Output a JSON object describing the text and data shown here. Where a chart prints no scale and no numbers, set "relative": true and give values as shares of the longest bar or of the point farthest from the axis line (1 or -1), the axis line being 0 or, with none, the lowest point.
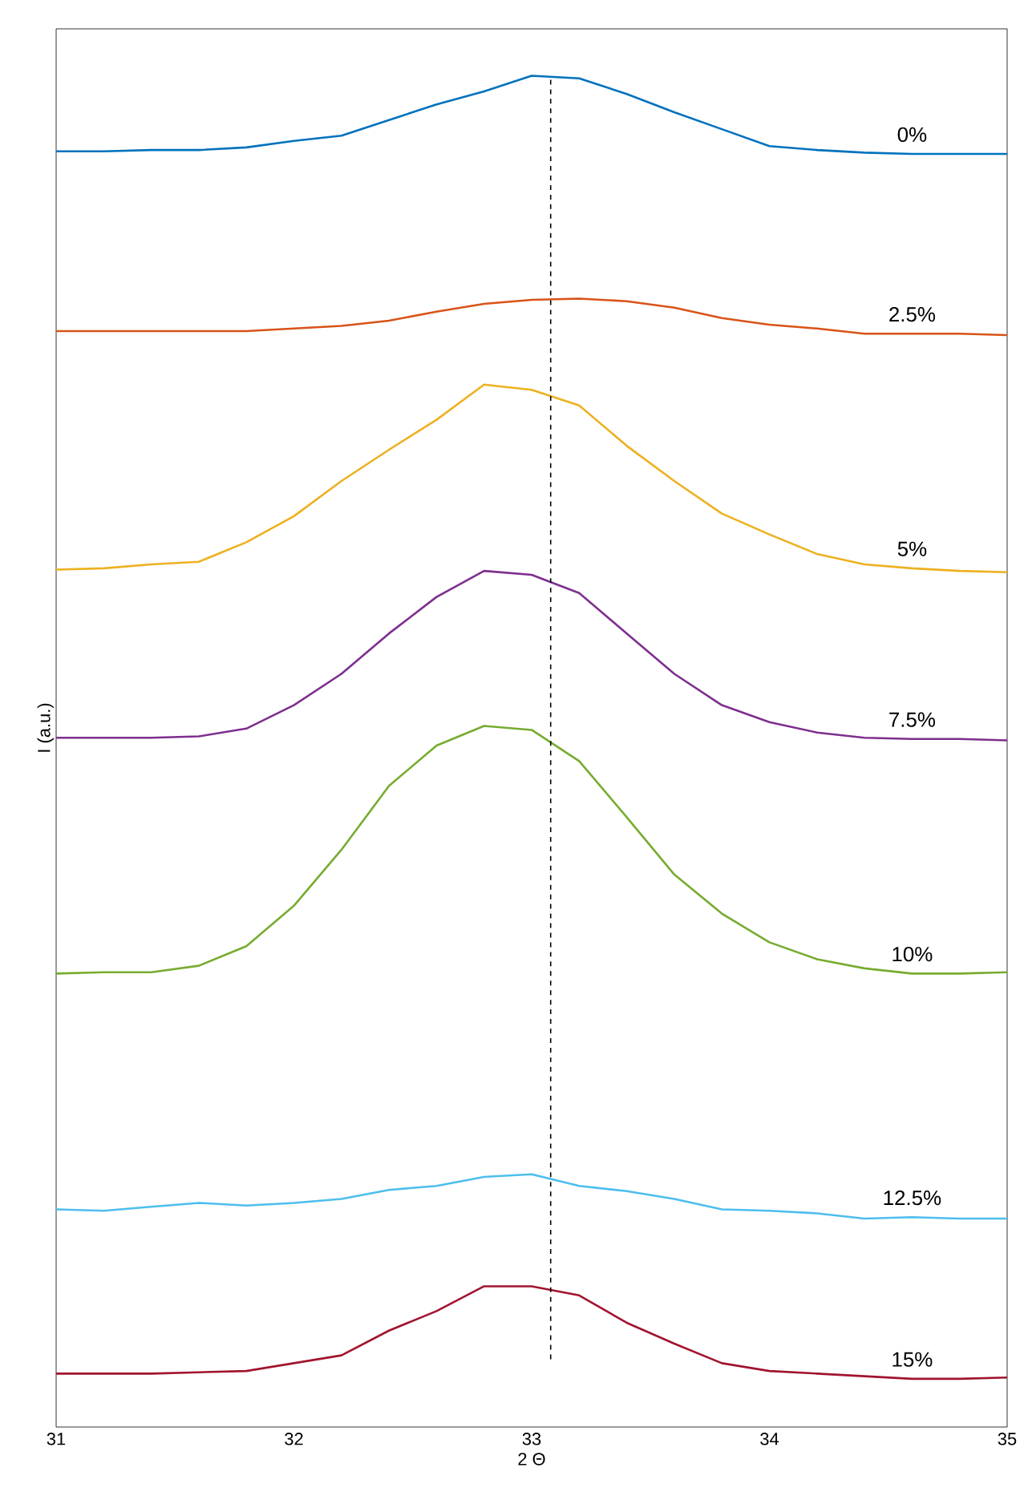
{
  "chart_data": {
    "type": "line",
    "relative": true,
    "xlabel": "2 Θ",
    "ylabel": "I (a.u.)",
    "xlim": [
      31,
      35
    ],
    "xticks": [
      31,
      32,
      33,
      34,
      35
    ],
    "x": [
      31,
      31.2,
      31.4,
      31.6,
      31.8,
      32,
      32.2,
      32.4,
      32.6,
      32.8,
      33,
      33.2,
      33.4,
      33.6,
      33.8,
      34,
      34.2,
      34.4,
      34.6,
      34.8,
      35
    ],
    "series": [
      {
        "name": "0%",
        "color": "#0072bd",
        "values": [
          0.942,
          0.942,
          0.943,
          0.943,
          0.945,
          0.95,
          0.954,
          0.966,
          0.978,
          0.988,
          1.0,
          0.998,
          0.986,
          0.972,
          0.959,
          0.946,
          0.943,
          0.941,
          0.94,
          0.94,
          0.94
        ]
      },
      {
        "name": "2.5%",
        "color": "#d95319",
        "values": [
          0.804,
          0.804,
          0.804,
          0.804,
          0.804,
          0.806,
          0.808,
          0.812,
          0.819,
          0.825,
          0.828,
          0.829,
          0.827,
          0.822,
          0.814,
          0.809,
          0.806,
          0.802,
          0.802,
          0.802,
          0.801
        ]
      },
      {
        "name": "5%",
        "color": "#edb120",
        "values": [
          0.621,
          0.622,
          0.625,
          0.627,
          0.642,
          0.662,
          0.689,
          0.713,
          0.736,
          0.763,
          0.759,
          0.747,
          0.716,
          0.689,
          0.664,
          0.648,
          0.633,
          0.625,
          0.622,
          0.62,
          0.619
        ]
      },
      {
        "name": "7.5%",
        "color": "#7e2f8e",
        "values": [
          0.492,
          0.492,
          0.492,
          0.493,
          0.499,
          0.517,
          0.541,
          0.572,
          0.6,
          0.62,
          0.617,
          0.603,
          0.572,
          0.541,
          0.517,
          0.504,
          0.496,
          0.492,
          0.491,
          0.491,
          0.49
        ]
      },
      {
        "name": "10%",
        "color": "#77ac30",
        "values": [
          0.311,
          0.312,
          0.312,
          0.317,
          0.332,
          0.363,
          0.406,
          0.455,
          0.486,
          0.501,
          0.498,
          0.474,
          0.431,
          0.387,
          0.357,
          0.335,
          0.322,
          0.315,
          0.311,
          0.311,
          0.312
        ]
      },
      {
        "name": "12.5%",
        "color": "#4dbeee",
        "values": [
          0.13,
          0.129,
          0.132,
          0.135,
          0.133,
          0.135,
          0.138,
          0.145,
          0.148,
          0.155,
          0.157,
          0.148,
          0.144,
          0.138,
          0.13,
          0.129,
          0.127,
          0.123,
          0.124,
          0.123,
          0.123
        ]
      },
      {
        "name": "15%",
        "color": "#a2142f",
        "values": [
          0.004,
          0.004,
          0.004,
          0.005,
          0.006,
          0.012,
          0.018,
          0.037,
          0.052,
          0.071,
          0.071,
          0.064,
          0.043,
          0.027,
          0.012,
          0.006,
          0.004,
          0.002,
          0.0,
          0.0,
          0.001
        ]
      }
    ],
    "ref_lines": [
      {
        "axis": "x",
        "value": 33.08,
        "line_style": "dashed",
        "color": "#000000"
      }
    ]
  }
}
